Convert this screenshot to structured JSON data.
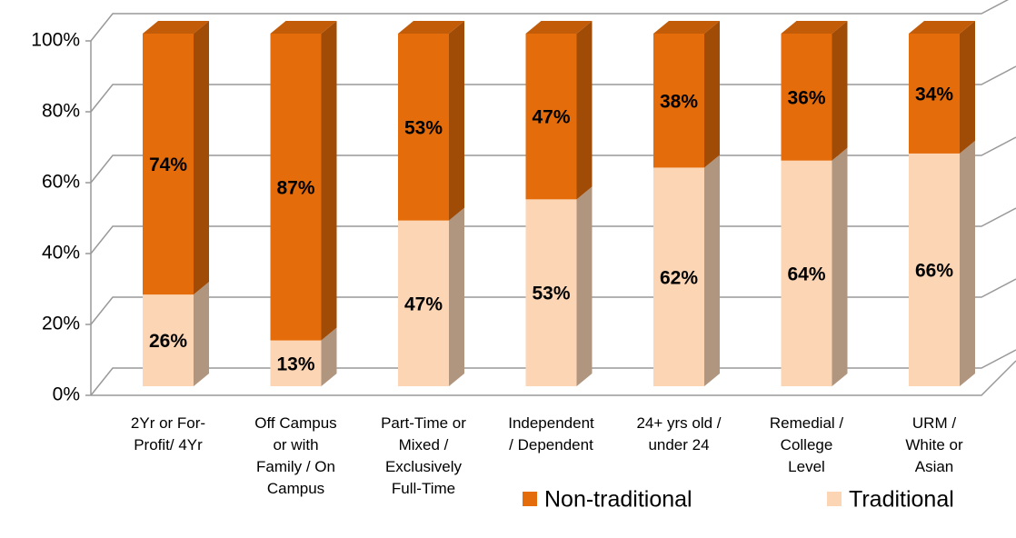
{
  "chart_data": {
    "type": "stacked_bar_3d",
    "categories": [
      "2Yr or For-\nProfit/ 4Yr",
      "Off Campus\nor with\nFamily /   On\nCampus",
      "Part-Time or\nMixed /\nExclusively\nFull-Time",
      "Independent\n/ Dependent",
      "24+ yrs old /\nunder 24",
      "Remedial /\nCollege\nLevel",
      "URM /\nWhite or\nAsian"
    ],
    "series": [
      {
        "name": "Non-traditional",
        "color": "#e46c0a",
        "values": [
          74,
          87,
          53,
          47,
          38,
          36,
          34
        ],
        "value_labels": [
          "74%",
          "87%",
          "53%",
          "47%",
          "38%",
          "36%",
          "34%"
        ]
      },
      {
        "name": "Traditional",
        "color": "#fcd5b5",
        "values": [
          26,
          13,
          47,
          53,
          62,
          64,
          66
        ],
        "value_labels": [
          "26%",
          "13%",
          "47%",
          "53%",
          "62%",
          "64%",
          "66%"
        ]
      }
    ],
    "ylim": [
      0,
      100
    ],
    "yticks": [
      {
        "value": 0,
        "label": "0%"
      },
      {
        "value": 20,
        "label": "20%"
      },
      {
        "value": 40,
        "label": "40%"
      },
      {
        "value": 60,
        "label": "60%"
      },
      {
        "value": 80,
        "label": "80%"
      },
      {
        "value": 100,
        "label": "100%"
      }
    ],
    "grid": true,
    "legend": "bottom"
  }
}
